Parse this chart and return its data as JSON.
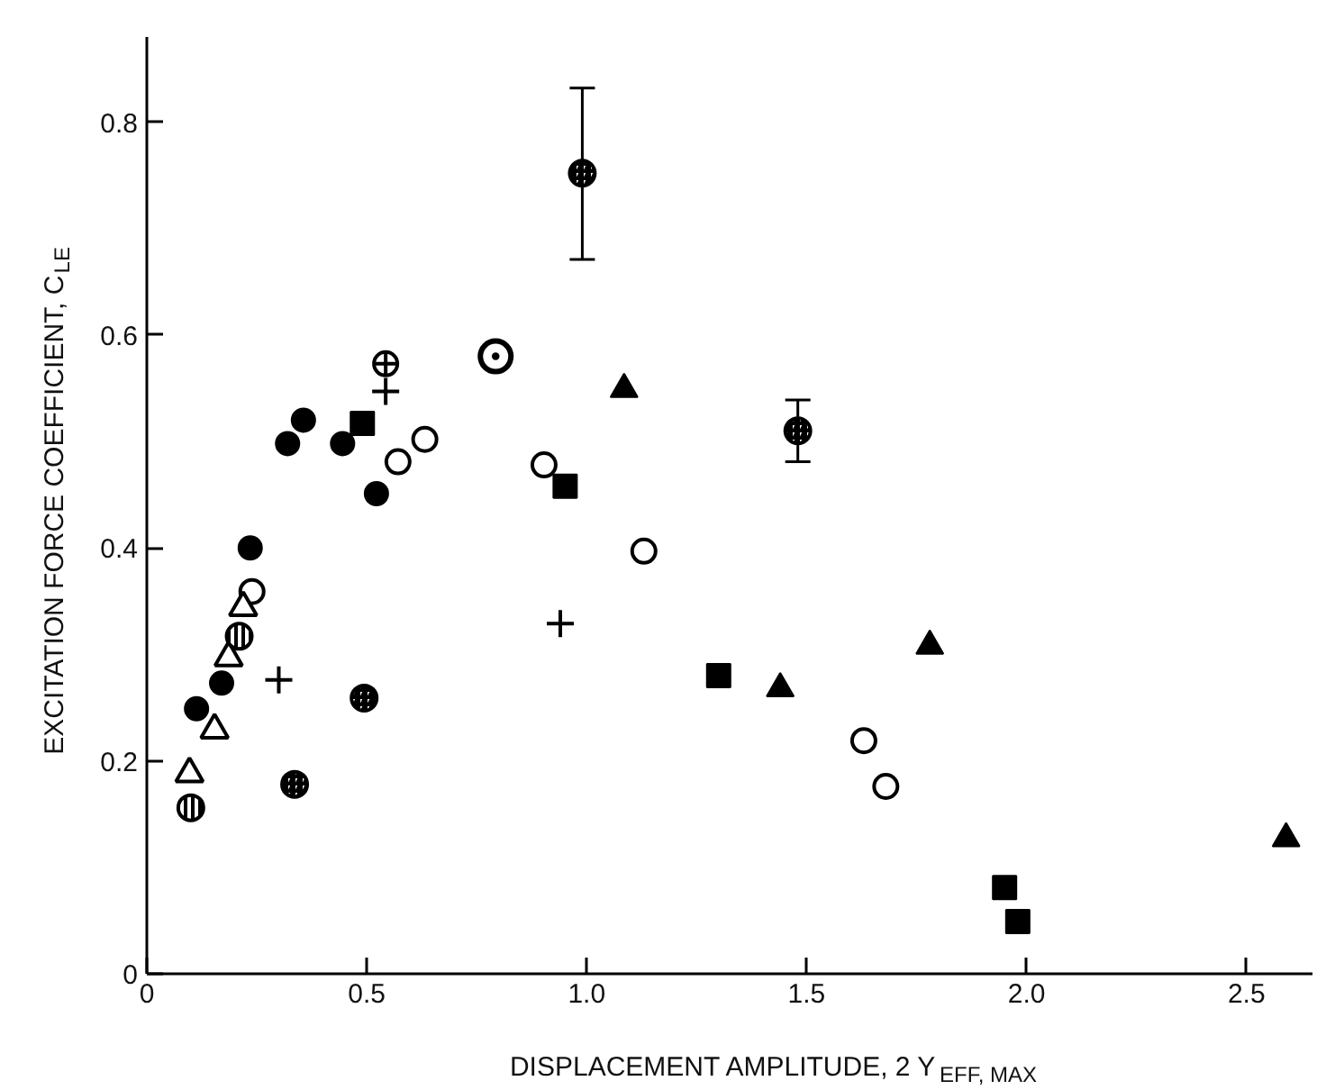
{
  "chart_data": {
    "type": "scatter",
    "xlabel": "DISPLACEMENT AMPLITUDE, 2 Y$_{EFF, MAX}$",
    "ylabel": "EXCITATION FORCE COEFFICIENT, C$_{LE}$",
    "xlim": [
      0,
      2.65
    ],
    "ylim": [
      0,
      0.88
    ],
    "xticks": [
      {
        "value": 0,
        "label": "0"
      },
      {
        "value": 0.5,
        "label": "0.5"
      },
      {
        "value": 1,
        "label": "1.0"
      },
      {
        "value": 1.5,
        "label": "1.5"
      },
      {
        "value": 2,
        "label": "2.0"
      },
      {
        "value": 2.5,
        "label": "2.5"
      }
    ],
    "yticks": [
      {
        "value": 0,
        "label": "0"
      },
      {
        "value": 0.2,
        "label": "0.2"
      },
      {
        "value": 0.4,
        "label": "0.4"
      },
      {
        "value": 0.6,
        "label": "0.6"
      },
      {
        "value": 0.8,
        "label": "0.8"
      }
    ],
    "series": [
      {
        "marker": "circle",
        "color": "#000000",
        "x": [
          0.113,
          0.17,
          0.235,
          0.32,
          0.356,
          0.445,
          0.522
        ],
        "values": [
          0.249,
          0.273,
          0.4,
          0.498,
          0.52,
          0.498,
          0.451
        ]
      },
      {
        "marker": "circle_open",
        "color": "#000000",
        "x": [
          0.239,
          0.571,
          0.632,
          0.903,
          1.13,
          1.63,
          1.68
        ],
        "values": [
          0.359,
          0.481,
          0.502,
          0.478,
          0.397,
          0.219,
          0.176
        ]
      },
      {
        "marker": "triangle_open",
        "color": "#000000",
        "x": [
          0.097,
          0.154,
          0.186,
          0.219
        ],
        "values": [
          0.188,
          0.229,
          0.297,
          0.344
        ]
      },
      {
        "marker": "triangle",
        "color": "#000000",
        "x": [
          1.085,
          1.44,
          1.78,
          2.59
        ],
        "values": [
          0.549,
          0.268,
          0.308,
          0.127
        ]
      },
      {
        "marker": "square",
        "color": "#000000",
        "x": [
          0.49,
          0.951,
          1.3,
          1.95,
          1.98
        ],
        "values": [
          0.517,
          0.458,
          0.28,
          0.081,
          0.049
        ]
      },
      {
        "marker": "cross",
        "color": "#000000",
        "x": [
          0.3,
          0.543,
          0.94
        ],
        "values": [
          0.276,
          0.547,
          0.329
        ]
      },
      {
        "marker": "circle_cross",
        "color": "#000000",
        "x": [
          0.543
        ],
        "values": [
          0.573
        ]
      },
      {
        "marker": "circle_half",
        "color": "#000000",
        "x": [
          0.1,
          0.21
        ],
        "values": [
          0.156,
          0.317
        ]
      },
      {
        "marker": "circle_diagonal",
        "color": "#000000",
        "x": [
          0.336,
          0.494,
          0.99,
          1.48
        ],
        "values": [
          0.178,
          0.259,
          0.752,
          0.51
        ],
        "errors": [
          null,
          null,
          [
            0.671,
            0.832
          ],
          [
            0.481,
            0.539
          ]
        ]
      },
      {
        "marker": "circle_triangle",
        "color": "#000000",
        "x": [
          0.793
        ],
        "values": [
          0.58
        ]
      }
    ]
  }
}
